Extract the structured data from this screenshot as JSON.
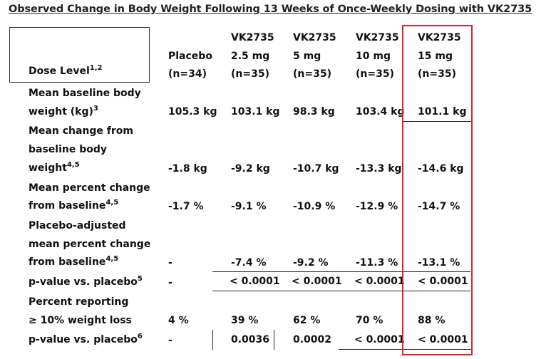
{
  "title": "Observed Change in Body Weight Following 13 Weeks of Once-Weekly Dosing with VK2735",
  "dose_label": {
    "text": "Dose Level",
    "sup": "1,2"
  },
  "columns": [
    {
      "name": "Placebo",
      "dose": "",
      "n": "(n=34)"
    },
    {
      "name": "VK2735",
      "dose": "2.5 mg",
      "n": "(n=35)"
    },
    {
      "name": "VK2735",
      "dose": "5 mg",
      "n": "(n=35)"
    },
    {
      "name": "VK2735",
      "dose": "10 mg",
      "n": "(n=35)"
    },
    {
      "name": "VK2735",
      "dose": "15 mg",
      "n": "(n=35)"
    }
  ],
  "rows": [
    {
      "label_lines": [
        "Mean baseline body",
        "weight (kg)"
      ],
      "sup": "3",
      "values": [
        "105.3 kg",
        "103.1 kg",
        "98.3 kg",
        "103.4 kg",
        "101.1 kg"
      ]
    },
    {
      "label_lines": [
        "Mean change from",
        "baseline body",
        "weight"
      ],
      "sup": "4,5",
      "values": [
        "-1.8 kg",
        "-9.2 kg",
        "-10.7 kg",
        "-13.3 kg",
        "-14.6 kg"
      ]
    },
    {
      "label_lines": [
        "Mean percent change",
        "from baseline"
      ],
      "sup": "4,5",
      "values": [
        "-1.7 %",
        "-9.1 %",
        "-10.9 %",
        "-12.9 %",
        "-14.7 %"
      ]
    },
    {
      "label_lines": [
        "Placebo-adjusted",
        "mean percent change",
        "from baseline"
      ],
      "sup": "4,5",
      "values": [
        "-",
        "-7.4 %",
        "-9.2 %",
        "-11.3 %",
        "-13.1 %"
      ]
    },
    {
      "label_lines": [
        "p-value vs. placebo"
      ],
      "sup": "5",
      "values": [
        "-",
        "< 0.0001",
        "< 0.0001",
        "< 0.0001",
        "< 0.0001"
      ]
    },
    {
      "label_lines": [
        "Percent reporting",
        "≥ 10% weight loss"
      ],
      "sup": "",
      "values": [
        "4 %",
        "39 %",
        "62 %",
        "70 %",
        "88 %"
      ]
    },
    {
      "label_lines": [
        "p-value vs. placebo"
      ],
      "sup": "6",
      "values": [
        "-",
        "0.0036",
        "0.0002",
        "< 0.0001",
        "< 0.0001"
      ]
    }
  ]
}
